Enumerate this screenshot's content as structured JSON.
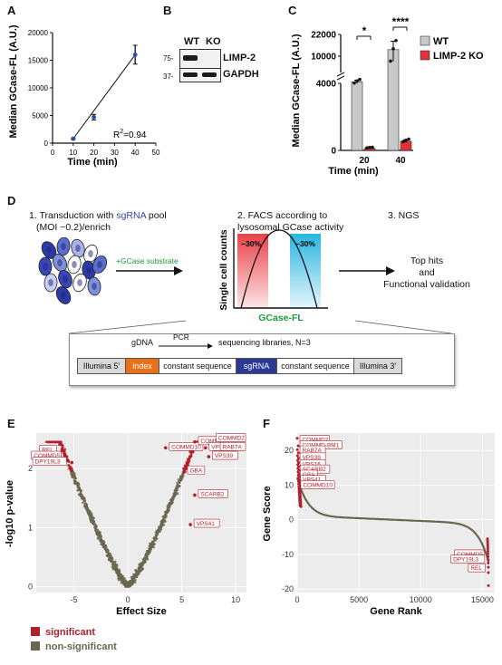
{
  "panels": {
    "a": "A",
    "b": "B",
    "c": "C",
    "d": "D",
    "e": "E",
    "f": "F"
  },
  "panel_a": {
    "chart_data": {
      "type": "scatter",
      "x": [
        10,
        20,
        40
      ],
      "y": [
        800,
        4700,
        16000
      ],
      "yerr": [
        150,
        500,
        1700
      ],
      "fit": "linear",
      "r2_text": "R",
      "r2_sup": "2",
      "r2_value": "=0.94",
      "xlabel": "Time (min)",
      "ylabel": "Median GCase-FL (A.U.)",
      "xlim": [
        0,
        50
      ],
      "ylim": [
        0,
        20000
      ],
      "xticks": [
        "0",
        "10",
        "20",
        "30",
        "40",
        "50"
      ],
      "yticks": [
        "0",
        "5000",
        "10000",
        "15000",
        "20000"
      ]
    }
  },
  "panel_b": {
    "lanes": [
      "WT",
      "KO"
    ],
    "rows": [
      {
        "marker": "75-",
        "label": "LIMP-2"
      },
      {
        "marker": "37-",
        "label": "GAPDH"
      }
    ]
  },
  "panel_c": {
    "chart_data": {
      "type": "bar",
      "categories": [
        "20",
        "40"
      ],
      "series": [
        {
          "name": "WT",
          "values": [
            4700,
            10900
          ],
          "color": "#c8c8c8"
        },
        {
          "name": "LIMP-2 KO",
          "values": [
            120,
            550
          ],
          "color": "#e0323c"
        }
      ],
      "xlabel": "Time (min)",
      "ylabel": "Median GCase-FL (A.U.)",
      "yticks": [
        "0",
        "4000",
        "10000",
        "22000"
      ],
      "significance": [
        "*",
        "****"
      ]
    }
  },
  "panel_d": {
    "step1_prefix": "1. Transduction with ",
    "step1_highlight": "sgRNA",
    "step1_suffix": " pool",
    "step1_line2": "(MOI ~0.2)/enrich",
    "substrate": "+GCase substrate",
    "step2_line1": "2. FACS according to",
    "step2_line2": "lysosomal GCase activity",
    "step3": "3. NGS",
    "ylabel": "Single cell counts",
    "xlabel": "GCase-FL",
    "gate_left": "~30%",
    "gate_right": "~30%",
    "outcome_line1": "Top hits",
    "outcome_line2": "and",
    "outcome_line3": "Functional validation",
    "library": {
      "gdna": "gDNA",
      "pcr": "PCR",
      "result": "sequencing libraries, N=3",
      "segments": [
        "Illumina 5'",
        "index",
        "constant sequence",
        "sgRNA",
        "constant sequence",
        "Illumina 3'"
      ]
    }
  },
  "panel_e": {
    "chart_data": {
      "type": "scatter",
      "xlabel": "Effect Size",
      "ylabel": "-log10 p-value",
      "xticks": [
        "-5",
        "0",
        "5",
        "10"
      ],
      "yticks": [
        "0",
        "1",
        "2"
      ],
      "xlim": [
        -8.5,
        11
      ],
      "ylim": [
        -0.1,
        2.6
      ],
      "labeled_points": [
        {
          "name": "REL",
          "x": -6.1,
          "y": 2.3
        },
        {
          "name": "COMMD5",
          "x": -5.7,
          "y": 2.2
        },
        {
          "name": "DPY19L3",
          "x": -5.2,
          "y": 2.1
        },
        {
          "name": "COMMD10",
          "x": 3.5,
          "y": 2.35
        },
        {
          "name": "COMMD-BM1",
          "x": 6.2,
          "y": 2.45
        },
        {
          "name": "COMMD2",
          "x": 8.5,
          "y": 2.5
        },
        {
          "name": "VPS16",
          "x": 7.2,
          "y": 2.35
        },
        {
          "name": "RAB7A",
          "x": 8.9,
          "y": 2.35
        },
        {
          "name": "VPS39",
          "x": 7.5,
          "y": 2.2
        },
        {
          "name": "GBA",
          "x": 5.2,
          "y": 1.95
        },
        {
          "name": "SCARB2",
          "x": 6.2,
          "y": 1.55
        },
        {
          "name": "VPS41",
          "x": 5.8,
          "y": 1.05
        }
      ],
      "legend": [
        {
          "name": "significant",
          "color": "#b0202c"
        },
        {
          "name": "non-significant",
          "color": "#6b6650"
        }
      ]
    }
  },
  "panel_f": {
    "chart_data": {
      "type": "line",
      "xlabel": "Gene Rank",
      "ylabel": "Gene Score",
      "xticks": [
        "0",
        "5000",
        "10000",
        "15000"
      ],
      "yticks": [
        "20",
        "10",
        "0",
        "-10",
        "-20"
      ],
      "xlim": [
        0,
        16000
      ],
      "ylim": [
        -21,
        25
      ],
      "labeled_points": [
        {
          "name": "COMMD2",
          "x": 1,
          "y": 23
        },
        {
          "name": "COMMD-BM1",
          "x": 3,
          "y": 21.5
        },
        {
          "name": "RAB7A",
          "x": 5,
          "y": 20
        },
        {
          "name": "VPS39",
          "x": 8,
          "y": 18
        },
        {
          "name": "VPS16",
          "x": 12,
          "y": 16
        },
        {
          "name": "SCARB2",
          "x": 20,
          "y": 14.5
        },
        {
          "name": "GBA",
          "x": 30,
          "y": 13
        },
        {
          "name": "VPS41",
          "x": 45,
          "y": 11.5
        },
        {
          "name": "COMMD10",
          "x": 70,
          "y": 10
        },
        {
          "name": "COMMD5",
          "x": 15350,
          "y": -10
        },
        {
          "name": "DPY19L3",
          "x": 15400,
          "y": -11.5
        },
        {
          "name": "REL",
          "x": 15460,
          "y": -14
        }
      ]
    }
  }
}
